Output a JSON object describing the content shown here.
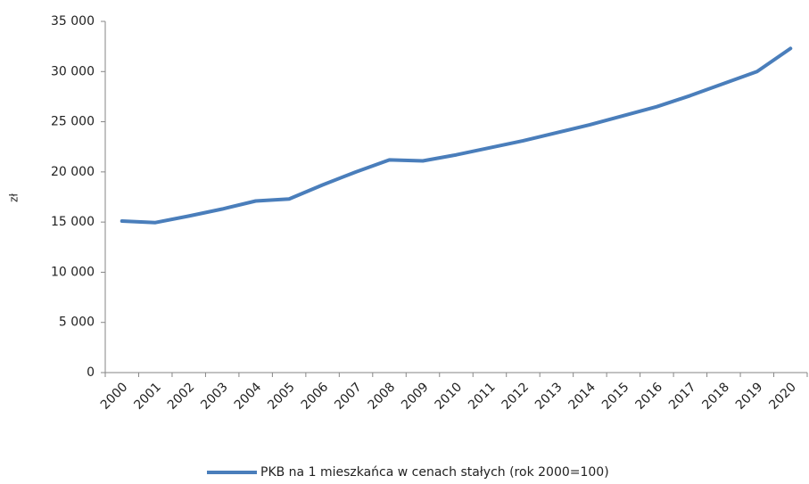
{
  "chart_data": {
    "type": "line",
    "y_label": "zł",
    "categories": [
      "2000",
      "2001",
      "2002",
      "2003",
      "2004",
      "2005",
      "2006",
      "2007",
      "2008",
      "2009",
      "2010",
      "2011",
      "2012",
      "2013",
      "2014",
      "2015",
      "2016",
      "2017",
      "2018",
      "2019",
      "2020"
    ],
    "series": [
      {
        "name": "PKB na 1 mieszkańca w cenach stałych (rok 2000=100)",
        "color": "#4a7ebb",
        "values": [
          15100,
          14950,
          15600,
          16300,
          17100,
          17300,
          18700,
          20000,
          21200,
          21100,
          21700,
          22400,
          23100,
          23900,
          24700,
          25600,
          26500,
          27600,
          28800,
          30000,
          32300
        ]
      }
    ],
    "ylim": [
      0,
      35000
    ],
    "yticks": [
      0,
      {
        "value": 5000,
        "label": "5 000"
      },
      {
        "value": 10000,
        "label": "10 000"
      },
      {
        "value": 15000,
        "label": "15 000"
      },
      {
        "value": 20000,
        "label": "20 000"
      },
      {
        "value": 25000,
        "label": "25 000"
      },
      {
        "value": 30000,
        "label": "30 000"
      },
      {
        "value": 35000,
        "label": "35 000"
      }
    ],
    "grid": false,
    "legend": "bottom"
  }
}
